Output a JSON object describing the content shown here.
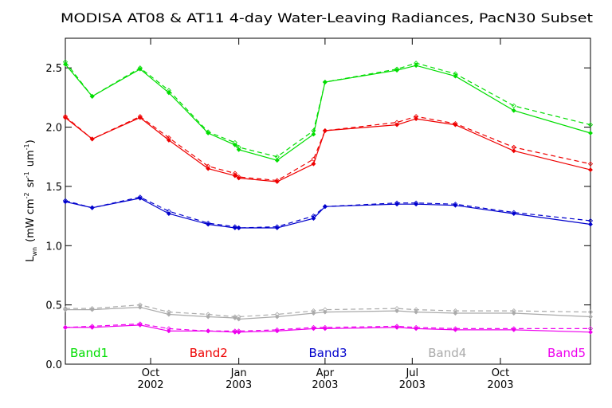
{
  "chart_data": {
    "type": "line",
    "title": "MODISA AT08 & AT11 4-day Water-Leaving Radiances, PacN30 Subset",
    "ylabel": {
      "main": "L",
      "sub": "wn",
      "unit_open": "(mW cm",
      "exp1": "-2",
      "mid": "sr",
      "exp2": "-1",
      "um": "um",
      "exp3": "-1",
      "close": ")"
    },
    "ylim": [
      0.0,
      2.75
    ],
    "yticks": [
      {
        "value": 0.0,
        "label": "0.0"
      },
      {
        "value": 0.5,
        "label": "0.5"
      },
      {
        "value": 1.0,
        "label": "1.0"
      },
      {
        "value": 1.5,
        "label": "1.5"
      },
      {
        "value": 2.0,
        "label": "2.0"
      },
      {
        "value": 2.5,
        "label": "2.5"
      }
    ],
    "xlim": [
      "2002-07-04",
      "2004-01-03"
    ],
    "xticks": [
      {
        "date": "2002-10-01",
        "month": "Oct",
        "year": "2002"
      },
      {
        "date": "2003-01-01",
        "month": "Jan",
        "year": "2003"
      },
      {
        "date": "2003-04-01",
        "month": "Apr",
        "year": "2003"
      },
      {
        "date": "2003-07-01",
        "month": "Jul",
        "year": "2003"
      },
      {
        "date": "2003-10-01",
        "month": "Oct",
        "year": "2003"
      }
    ],
    "x": [
      "2002-07-04",
      "2002-08-01",
      "2002-09-20",
      "2002-10-20",
      "2002-11-30",
      "2002-12-28",
      "2003-01-01",
      "2003-02-10",
      "2003-03-20",
      "2003-04-01",
      "2003-06-15",
      "2003-07-05",
      "2003-08-15",
      "2003-10-15",
      "2004-01-03"
    ],
    "series": [
      {
        "name": "Band1",
        "color": "#00dd00",
        "solid": [
          2.53,
          2.26,
          2.49,
          2.29,
          1.95,
          1.85,
          1.81,
          1.72,
          1.94,
          2.38,
          2.48,
          2.52,
          2.43,
          2.14,
          1.95
        ],
        "dashed": [
          2.55,
          2.26,
          2.5,
          2.31,
          1.96,
          1.87,
          1.83,
          1.75,
          1.97,
          2.38,
          2.49,
          2.54,
          2.45,
          2.18,
          2.02
        ]
      },
      {
        "name": "Band2",
        "color": "#ee0000",
        "solid": [
          2.08,
          1.9,
          2.08,
          1.89,
          1.65,
          1.59,
          1.57,
          1.54,
          1.69,
          1.97,
          2.02,
          2.07,
          2.02,
          1.8,
          1.64
        ],
        "dashed": [
          2.09,
          1.9,
          2.09,
          1.91,
          1.67,
          1.61,
          1.58,
          1.55,
          1.73,
          1.97,
          2.04,
          2.09,
          2.03,
          1.83,
          1.69
        ]
      },
      {
        "name": "Band3",
        "color": "#0000cc",
        "solid": [
          1.37,
          1.32,
          1.4,
          1.27,
          1.18,
          1.15,
          1.15,
          1.15,
          1.23,
          1.33,
          1.35,
          1.35,
          1.34,
          1.27,
          1.18
        ],
        "dashed": [
          1.38,
          1.32,
          1.41,
          1.29,
          1.19,
          1.16,
          1.15,
          1.16,
          1.25,
          1.33,
          1.36,
          1.36,
          1.35,
          1.28,
          1.21
        ]
      },
      {
        "name": "Band4",
        "color": "#aaaaaa",
        "solid": [
          0.46,
          0.46,
          0.48,
          0.42,
          0.4,
          0.39,
          0.38,
          0.4,
          0.43,
          0.44,
          0.45,
          0.44,
          0.43,
          0.43,
          0.4
        ],
        "dashed": [
          0.47,
          0.47,
          0.5,
          0.44,
          0.42,
          0.4,
          0.4,
          0.42,
          0.45,
          0.46,
          0.47,
          0.46,
          0.45,
          0.45,
          0.44
        ]
      },
      {
        "name": "Band5",
        "color": "#ee00ee",
        "solid": [
          0.31,
          0.31,
          0.33,
          0.28,
          0.28,
          0.27,
          0.27,
          0.28,
          0.3,
          0.3,
          0.31,
          0.3,
          0.29,
          0.29,
          0.27
        ],
        "dashed": [
          0.31,
          0.32,
          0.34,
          0.3,
          0.28,
          0.28,
          0.28,
          0.29,
          0.31,
          0.31,
          0.32,
          0.31,
          0.3,
          0.3,
          0.3
        ]
      }
    ],
    "legend_placement": "bottom inside plot",
    "grid": false
  }
}
